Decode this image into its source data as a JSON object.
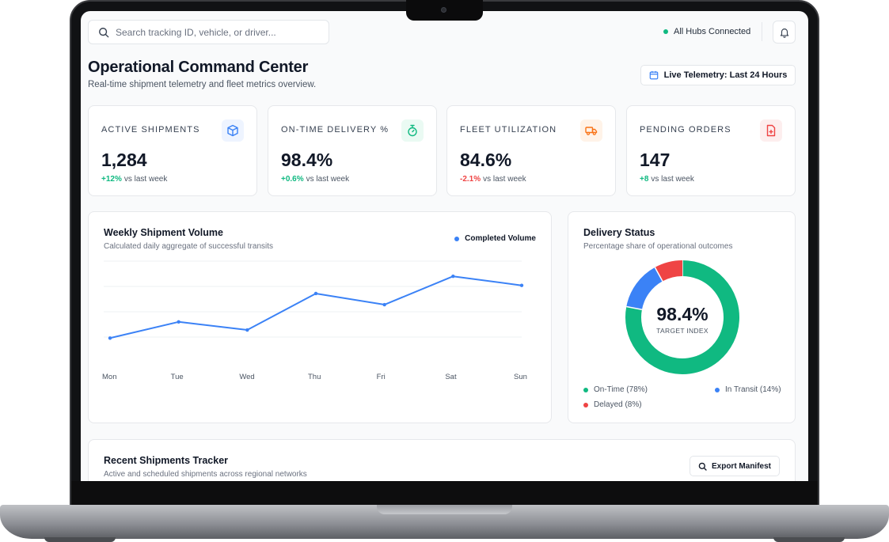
{
  "search": {
    "placeholder": "Search tracking ID, vehicle, or driver..."
  },
  "status": {
    "label": "All Hubs Connected",
    "color": "#10b981"
  },
  "header": {
    "title": "Operational Command Center",
    "subtitle": "Real-time shipment telemetry and fleet metrics overview.",
    "telemetry_button": "Live Telemetry: Last 24 Hours"
  },
  "kpis": [
    {
      "label": "ACTIVE SHIPMENTS",
      "value": "1,284",
      "change": "+12%",
      "change_suffix": "vs last week",
      "icon": "package-icon",
      "trend": "up"
    },
    {
      "label": "ON-TIME DELIVERY %",
      "value": "98.4%",
      "change": "+0.6%",
      "change_suffix": "vs last week",
      "icon": "stopwatch-icon",
      "trend": "up"
    },
    {
      "label": "FLEET UTILIZATION",
      "value": "84.6%",
      "change": "-2.1%",
      "change_suffix": "vs last week",
      "icon": "truck-icon",
      "trend": "down"
    },
    {
      "label": "PENDING ORDERS",
      "value": "147",
      "change": "+8",
      "change_suffix": "vs last week",
      "icon": "file-plus-icon",
      "trend": "up"
    }
  ],
  "weekly_chart": {
    "title": "Weekly Shipment Volume",
    "subtitle": "Calculated daily aggregate of successful transits",
    "legend": "Completed Volume"
  },
  "delivery_status": {
    "title": "Delivery Status",
    "subtitle": "Percentage share of operational outcomes",
    "center_value": "98.4%",
    "center_label": "TARGET INDEX",
    "legend": [
      {
        "label": "On-Time (78%)",
        "color": "#10b981"
      },
      {
        "label": "In Transit (14%)",
        "color": "#3b82f6"
      },
      {
        "label": "Delayed (8%)",
        "color": "#ef4444"
      }
    ]
  },
  "recent": {
    "title": "Recent Shipments Tracker",
    "subtitle": "Active and scheduled shipments across regional networks",
    "export_button": "Export Manifest"
  },
  "chart_data": [
    {
      "type": "line",
      "title": "Weekly Shipment Volume",
      "categories": [
        "Mon",
        "Tue",
        "Wed",
        "Thu",
        "Fri",
        "Sat",
        "Sun"
      ],
      "series": [
        {
          "name": "Completed Volume",
          "color": "#3b82f6",
          "values": [
            24,
            40,
            32,
            68,
            57,
            85,
            76
          ]
        }
      ],
      "ylim": [
        0,
        100
      ],
      "grid": true,
      "legend_position": "top-right"
    },
    {
      "type": "pie",
      "title": "Delivery Status",
      "categories": [
        "On-Time",
        "In Transit",
        "Delayed"
      ],
      "values": [
        78,
        14,
        8
      ],
      "colors": [
        "#10b981",
        "#3b82f6",
        "#ef4444"
      ],
      "legend_position": "bottom"
    }
  ]
}
